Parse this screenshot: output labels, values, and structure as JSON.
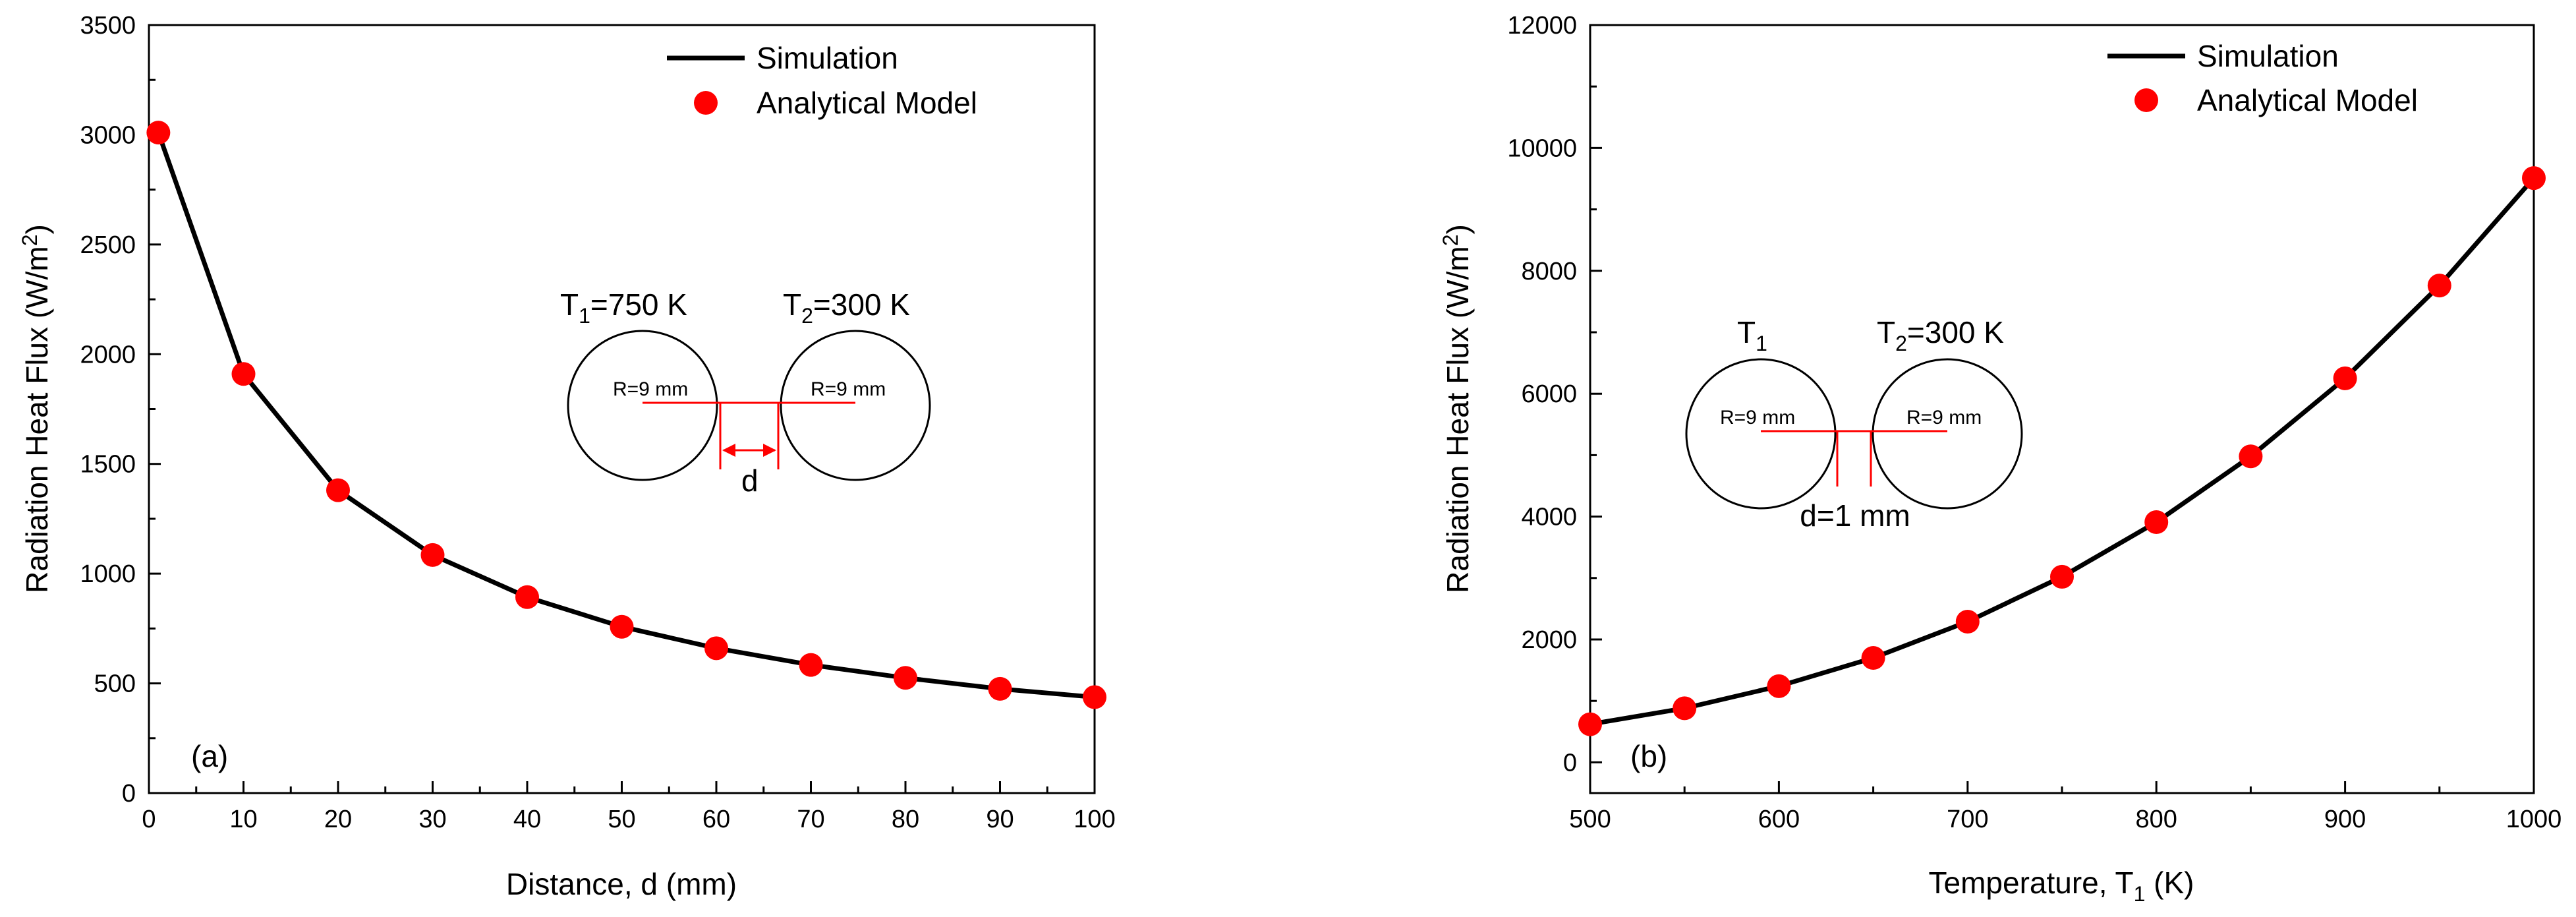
{
  "chart_data": [
    {
      "type": "line",
      "panel_label": "(a)",
      "xlabel": "Distance, d (mm)",
      "ylabel": "Radiation Heat Flux (W/m",
      "ylabel_sup": "2",
      "ylabel_tail": ")",
      "xlim": [
        0,
        100
      ],
      "ylim": [
        0,
        3500
      ],
      "xticks": [
        0,
        10,
        20,
        30,
        40,
        50,
        60,
        70,
        80,
        90,
        100
      ],
      "xtick_labels": [
        "0",
        "10",
        "20",
        "30",
        "40",
        "50",
        "60",
        "70",
        "80",
        "90",
        "100"
      ],
      "yticks": [
        0,
        500,
        1000,
        1500,
        2000,
        2500,
        3000,
        3500
      ],
      "ytick_labels": [
        "0",
        "500",
        "1000",
        "1500",
        "2000",
        "2500",
        "3000",
        "3500"
      ],
      "legend_position": "top-right",
      "series": [
        {
          "name": "Simulation",
          "style": "line",
          "color": "#000000",
          "x": [
            1,
            10,
            20,
            30,
            40,
            50,
            60,
            70,
            80,
            90,
            100
          ],
          "y": [
            3010,
            1910,
            1380,
            1085,
            893,
            758,
            660,
            584,
            525,
            475,
            437
          ]
        },
        {
          "name": "Analytical Model",
          "style": "marker",
          "color": "#ff0000",
          "x": [
            1,
            10,
            20,
            30,
            40,
            50,
            60,
            70,
            80,
            90,
            100
          ],
          "y": [
            3010,
            1910,
            1380,
            1085,
            893,
            758,
            660,
            584,
            525,
            475,
            437
          ]
        }
      ],
      "inset": {
        "t1_prefix": "T",
        "t1_sub": "1",
        "t1_suffix": "=750 K",
        "t2_prefix": "T",
        "t2_sub": "2",
        "t2_suffix": "=300 K",
        "r1_label": "R=9 mm",
        "r2_label": "R=9 mm",
        "gap_label": "d"
      }
    },
    {
      "type": "line",
      "panel_label": "(b)",
      "xlabel": "Temperature, T",
      "xlabel_sub": "1",
      "xlabel_tail": " (K)",
      "ylabel": "Radiation Heat Flux (W/m",
      "ylabel_sup": "2",
      "ylabel_tail": ")",
      "xlim": [
        500,
        1000
      ],
      "ylim": [
        -500,
        12000
      ],
      "xticks": [
        500,
        600,
        700,
        800,
        900,
        1000
      ],
      "xtick_labels": [
        "500",
        "600",
        "700",
        "800",
        "900",
        "1000"
      ],
      "yticks": [
        0,
        2000,
        4000,
        6000,
        8000,
        10000,
        12000
      ],
      "ytick_labels": [
        "0",
        "2000",
        "4000",
        "6000",
        "8000",
        "10000",
        "12000"
      ],
      "legend_position": "top-right",
      "series": [
        {
          "name": "Simulation",
          "style": "line",
          "color": "#000000",
          "x": [
            500,
            550,
            600,
            650,
            700,
            750,
            800,
            850,
            900,
            950,
            1000
          ],
          "y": [
            620,
            880,
            1240,
            1700,
            2290,
            3020,
            3910,
            4980,
            6250,
            7760,
            9510
          ]
        },
        {
          "name": "Analytical Model",
          "style": "marker",
          "color": "#ff0000",
          "x": [
            500,
            550,
            600,
            650,
            700,
            750,
            800,
            850,
            900,
            950,
            1000
          ],
          "y": [
            620,
            880,
            1240,
            1700,
            2290,
            3020,
            3910,
            4980,
            6250,
            7760,
            9510
          ]
        }
      ],
      "inset": {
        "t1_prefix": "T",
        "t1_sub": "1",
        "t1_suffix": "",
        "t2_prefix": "T",
        "t2_sub": "2",
        "t2_suffix": "=300 K",
        "r1_label": "R=9 mm",
        "r2_label": "R=9 mm",
        "gap_label": "d=1 mm"
      }
    }
  ]
}
